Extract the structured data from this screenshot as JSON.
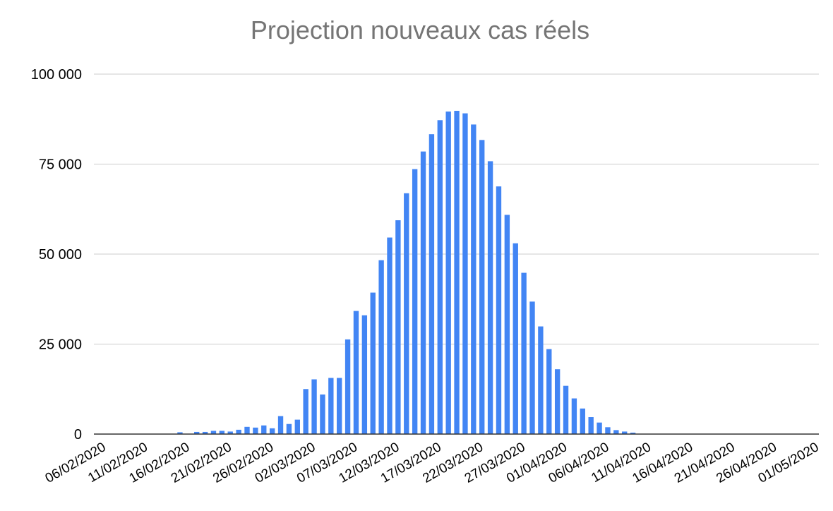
{
  "chart_data": {
    "type": "bar",
    "title": "Projection nouveaux cas réels",
    "xlabel": "",
    "ylabel": "",
    "ylim": [
      0,
      100000
    ],
    "yticks": [
      0,
      25000,
      50000,
      75000,
      100000
    ],
    "ytick_labels": [
      "0",
      "25 000",
      "50 000",
      "75 000",
      "100 000"
    ],
    "xlim": [
      "06/02/2020",
      "01/05/2020"
    ],
    "xtick_labels": [
      "06/02/2020",
      "11/02/2020",
      "16/02/2020",
      "21/02/2020",
      "26/02/2020",
      "02/03/2020",
      "07/03/2020",
      "12/03/2020",
      "17/03/2020",
      "22/03/2020",
      "27/03/2020",
      "01/04/2020",
      "06/04/2020",
      "11/04/2020",
      "16/04/2020",
      "21/04/2020",
      "26/04/2020",
      "01/05/2020"
    ],
    "grid": true,
    "color": "#4285f4",
    "categories": [
      "06/02/2020",
      "07/02/2020",
      "08/02/2020",
      "09/02/2020",
      "10/02/2020",
      "11/02/2020",
      "12/02/2020",
      "13/02/2020",
      "14/02/2020",
      "15/02/2020",
      "16/02/2020",
      "17/02/2020",
      "18/02/2020",
      "19/02/2020",
      "20/02/2020",
      "21/02/2020",
      "22/02/2020",
      "23/02/2020",
      "24/02/2020",
      "25/02/2020",
      "26/02/2020",
      "27/02/2020",
      "28/02/2020",
      "29/02/2020",
      "01/03/2020",
      "02/03/2020",
      "03/03/2020",
      "04/03/2020",
      "05/03/2020",
      "06/03/2020",
      "07/03/2020",
      "08/03/2020",
      "09/03/2020",
      "10/03/2020",
      "11/03/2020",
      "12/03/2020",
      "13/03/2020",
      "14/03/2020",
      "15/03/2020",
      "16/03/2020",
      "17/03/2020",
      "18/03/2020",
      "19/03/2020",
      "20/03/2020",
      "21/03/2020",
      "22/03/2020",
      "23/03/2020",
      "24/03/2020",
      "25/03/2020",
      "26/03/2020",
      "27/03/2020",
      "28/03/2020",
      "29/03/2020",
      "30/03/2020",
      "31/03/2020",
      "01/04/2020",
      "02/04/2020",
      "03/04/2020",
      "04/04/2020",
      "05/04/2020",
      "06/04/2020",
      "07/04/2020",
      "08/04/2020",
      "09/04/2020",
      "10/04/2020",
      "11/04/2020"
    ],
    "values": [
      0,
      0,
      0,
      0,
      0,
      0,
      0,
      0,
      0,
      500,
      0,
      600,
      600,
      900,
      900,
      700,
      1200,
      2000,
      1800,
      2400,
      1600,
      5000,
      2800,
      4000,
      12500,
      15200,
      11000,
      15600,
      15600,
      26300,
      34200,
      33000,
      39300,
      48300,
      54600,
      59400,
      66900,
      73600,
      78500,
      83300,
      87200,
      89600,
      89800,
      89100,
      86000,
      81700,
      75800,
      68800,
      60900,
      53000,
      44800,
      36800,
      29900,
      23600,
      18000,
      13400,
      9900,
      7100,
      4700,
      3200,
      1900,
      1100,
      700,
      400,
      0,
      0
    ]
  }
}
